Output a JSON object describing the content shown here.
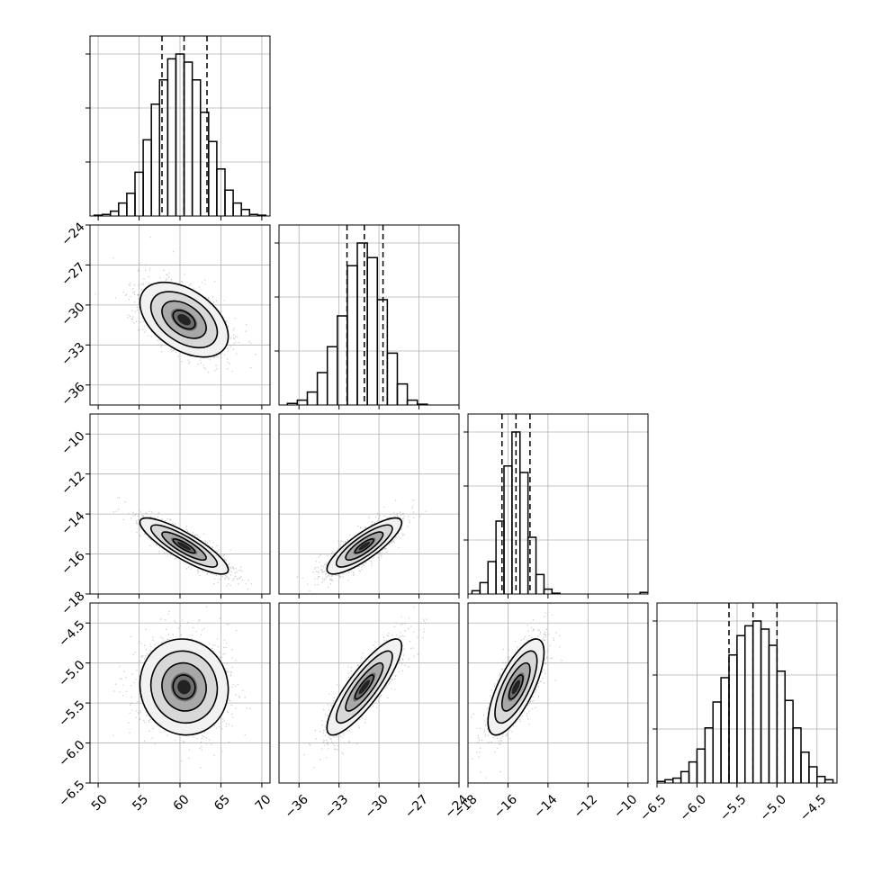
{
  "chart_data": {
    "type": "corner",
    "n_params": 4,
    "grid": true,
    "axes": [
      {
        "lim": [
          49,
          71
        ],
        "ticks": [
          50,
          55,
          60,
          65,
          70
        ],
        "tick_labels": [
          "50",
          "55",
          "60",
          "65",
          "70"
        ]
      },
      {
        "lim": [
          -37.5,
          -24
        ],
        "ticks": [
          -36,
          -33,
          -30,
          -27,
          -24
        ],
        "tick_labels": [
          "−36",
          "−33",
          "−30",
          "−27",
          "−24"
        ]
      },
      {
        "lim": [
          -18,
          -9
        ],
        "ticks": [
          -18,
          -16,
          -14,
          -12,
          -10
        ],
        "tick_labels": [
          "−18",
          "−16",
          "−14",
          "−12",
          "−10"
        ]
      },
      {
        "lim": [
          -6.5,
          -4.25
        ],
        "ticks": [
          -6.5,
          -6.0,
          -5.5,
          -5.0,
          -4.5
        ],
        "tick_labels": [
          "−6.5",
          "−6.0",
          "−5.5",
          "−5.0",
          "−4.5"
        ]
      }
    ],
    "marginals": [
      {
        "param": 0,
        "quantiles": [
          57.8,
          60.5,
          63.3
        ],
        "bins": [
          {
            "x": 50,
            "h": 0.005
          },
          {
            "x": 51,
            "h": 0.01
          },
          {
            "x": 52,
            "h": 0.03
          },
          {
            "x": 53,
            "h": 0.08
          },
          {
            "x": 54,
            "h": 0.14
          },
          {
            "x": 55,
            "h": 0.27
          },
          {
            "x": 56,
            "h": 0.47
          },
          {
            "x": 57,
            "h": 0.69
          },
          {
            "x": 58,
            "h": 0.84
          },
          {
            "x": 59,
            "h": 0.97
          },
          {
            "x": 60,
            "h": 1.0
          },
          {
            "x": 61,
            "h": 0.95
          },
          {
            "x": 62,
            "h": 0.84
          },
          {
            "x": 63,
            "h": 0.64
          },
          {
            "x": 64,
            "h": 0.46
          },
          {
            "x": 65,
            "h": 0.29
          },
          {
            "x": 66,
            "h": 0.16
          },
          {
            "x": 67,
            "h": 0.08
          },
          {
            "x": 68,
            "h": 0.04
          },
          {
            "x": 69,
            "h": 0.01
          },
          {
            "x": 70,
            "h": 0.005
          }
        ]
      },
      {
        "param": 1,
        "quantiles": [
          -32.4,
          -31.1,
          -29.7
        ],
        "bins": [
          {
            "x": -36.5,
            "h": 0.01
          },
          {
            "x": -35.75,
            "h": 0.03
          },
          {
            "x": -35,
            "h": 0.08
          },
          {
            "x": -34.25,
            "h": 0.2
          },
          {
            "x": -33.5,
            "h": 0.36
          },
          {
            "x": -32.75,
            "h": 0.55
          },
          {
            "x": -32,
            "h": 0.86
          },
          {
            "x": -31.25,
            "h": 1.0
          },
          {
            "x": -30.5,
            "h": 0.91
          },
          {
            "x": -29.75,
            "h": 0.65
          },
          {
            "x": -29,
            "h": 0.32
          },
          {
            "x": -28.25,
            "h": 0.13
          },
          {
            "x": -27.5,
            "h": 0.03
          },
          {
            "x": -26.75,
            "h": 0.005
          }
        ]
      },
      {
        "param": 2,
        "quantiles": [
          -16.3,
          -15.6,
          -14.9
        ],
        "bins": [
          {
            "x": -17.6,
            "h": 0.02
          },
          {
            "x": -17.2,
            "h": 0.07
          },
          {
            "x": -16.8,
            "h": 0.2
          },
          {
            "x": -16.4,
            "h": 0.45
          },
          {
            "x": -16.0,
            "h": 0.79
          },
          {
            "x": -15.6,
            "h": 1.0
          },
          {
            "x": -15.2,
            "h": 0.75
          },
          {
            "x": -14.8,
            "h": 0.35
          },
          {
            "x": -14.4,
            "h": 0.12
          },
          {
            "x": -14.0,
            "h": 0.03
          },
          {
            "x": -13.6,
            "h": 0.005
          },
          {
            "x": -9.2,
            "h": 0.01
          }
        ]
      },
      {
        "param": 3,
        "quantiles": [
          -5.6,
          -5.3,
          -5.0
        ],
        "bins": [
          {
            "x": -6.45,
            "h": 0.01
          },
          {
            "x": -6.35,
            "h": 0.02
          },
          {
            "x": -6.25,
            "h": 0.03
          },
          {
            "x": -6.15,
            "h": 0.07
          },
          {
            "x": -6.05,
            "h": 0.13
          },
          {
            "x": -5.95,
            "h": 0.21
          },
          {
            "x": -5.85,
            "h": 0.34
          },
          {
            "x": -5.75,
            "h": 0.5
          },
          {
            "x": -5.65,
            "h": 0.65
          },
          {
            "x": -5.55,
            "h": 0.79
          },
          {
            "x": -5.45,
            "h": 0.91
          },
          {
            "x": -5.35,
            "h": 0.97
          },
          {
            "x": -5.25,
            "h": 1.0
          },
          {
            "x": -5.15,
            "h": 0.95
          },
          {
            "x": -5.05,
            "h": 0.85
          },
          {
            "x": -4.95,
            "h": 0.69
          },
          {
            "x": -4.85,
            "h": 0.51
          },
          {
            "x": -4.75,
            "h": 0.34
          },
          {
            "x": -4.65,
            "h": 0.19
          },
          {
            "x": -4.55,
            "h": 0.1
          },
          {
            "x": -4.45,
            "h": 0.04
          },
          {
            "x": -4.35,
            "h": 0.02
          }
        ]
      }
    ],
    "pairs": [
      {
        "x_param": 0,
        "y_param": 1,
        "mean": [
          60.5,
          -31.1
        ],
        "sd": [
          2.7,
          1.4
        ],
        "rho": -0.45
      },
      {
        "x_param": 0,
        "y_param": 2,
        "mean": [
          60.5,
          -15.6
        ],
        "sd": [
          2.7,
          0.7
        ],
        "rho": -0.85
      },
      {
        "x_param": 1,
        "y_param": 2,
        "mean": [
          -31.1,
          -15.6
        ],
        "sd": [
          1.4,
          0.7
        ],
        "rho": 0.83
      },
      {
        "x_param": 0,
        "y_param": 3,
        "mean": [
          60.5,
          -5.3
        ],
        "sd": [
          2.7,
          0.3
        ],
        "rho": -0.05
      },
      {
        "x_param": 1,
        "y_param": 3,
        "mean": [
          -31.1,
          -5.3
        ],
        "sd": [
          1.4,
          0.3
        ],
        "rho": 0.85
      },
      {
        "x_param": 2,
        "y_param": 3,
        "mean": [
          -15.6,
          -5.3
        ],
        "sd": [
          0.7,
          0.3
        ],
        "rho": 0.72
      }
    ],
    "contour_levels": [
      0.5,
      1.0,
      1.5,
      2.0
    ]
  }
}
